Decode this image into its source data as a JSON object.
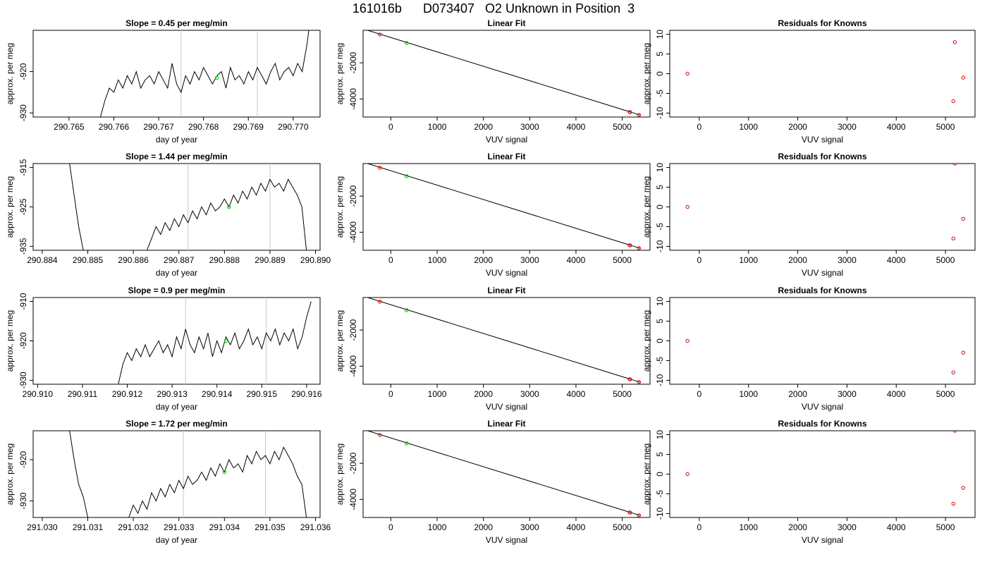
{
  "figure": {
    "title": "161016b      D073407   O2 Unknown in Position  3"
  },
  "chart_data": [
    {
      "type": "line",
      "panel": "timeseries",
      "row": 0,
      "title": "Slope =  0.45  per meg/min",
      "xlabel": "day of year",
      "ylabel": "approx. per meg",
      "xlim": [
        290.7642,
        290.7706
      ],
      "ylim": [
        -931,
        -910
      ],
      "xticks": [
        "290.765",
        "290.766",
        "290.767",
        "290.768",
        "290.769",
        "290.770"
      ],
      "yticks": [
        "-920",
        "-930"
      ],
      "vlines": [
        290.7675,
        290.7692
      ],
      "series": [
        {
          "x": [
            290.7657,
            290.7658,
            290.7659,
            290.766,
            290.7661,
            290.7662,
            290.7663,
            290.7664,
            290.7665,
            290.7666,
            290.7667,
            290.7668,
            290.7669,
            290.767,
            290.7671,
            290.7672,
            290.7673,
            290.7674,
            290.7675,
            290.7676,
            290.7677,
            290.7678,
            290.7679,
            290.768,
            290.7681,
            290.7682,
            290.7683,
            290.7684,
            290.7685,
            290.7686,
            290.7687,
            290.7688,
            290.7689,
            290.769,
            290.7691,
            290.7692,
            290.7693,
            290.7694,
            290.7695,
            290.7696,
            290.7697,
            290.7698,
            290.7699,
            290.77,
            290.7701,
            290.7702,
            290.7703,
            290.7704
          ],
          "y": [
            -931,
            -927,
            -924,
            -925,
            -922,
            -924,
            -921,
            -923,
            -920,
            -924,
            -922,
            -921,
            -923,
            -920,
            -922,
            -924,
            -918,
            -923,
            -925,
            -921,
            -923,
            -920,
            -922,
            -919,
            -921,
            -923,
            -921,
            -920,
            -924,
            -919,
            -922,
            -921,
            -923,
            -920,
            -922,
            -919,
            -921,
            -923,
            -920,
            -918,
            -922,
            -920,
            -919,
            -921,
            -918,
            -920,
            -914,
            -906
          ]
        }
      ],
      "marker": {
        "x": 290.7683,
        "y": -921.5
      }
    },
    {
      "type": "line",
      "panel": "timeseries",
      "row": 1,
      "title": "Slope =  1.44  per meg/min",
      "xlabel": "day of year",
      "ylabel": "approx. per meg",
      "xlim": [
        290.8838,
        290.8901
      ],
      "ylim": [
        -936,
        -914
      ],
      "xticks": [
        "290.884",
        "290.885",
        "290.886",
        "290.887",
        "290.888",
        "290.889",
        "290.890"
      ],
      "yticks": [
        "-915",
        "-925",
        "-935"
      ],
      "vlines": [
        290.8872,
        290.889
      ],
      "series": [
        {
          "x": [
            290.8846,
            290.8847,
            290.8848,
            290.8849,
            290.885,
            290.8851,
            290.8852,
            290.8853,
            290.8854,
            290.8855,
            290.8856,
            290.8857,
            290.8858,
            290.8859,
            290.886,
            290.8861,
            290.8862,
            290.8863,
            290.8864,
            290.8865,
            290.8866,
            290.8867,
            290.8868,
            290.8869,
            290.887,
            290.8871,
            290.8872,
            290.8873,
            290.8874,
            290.8875,
            290.8876,
            290.8877,
            290.8878,
            290.8879,
            290.888,
            290.8881,
            290.8882,
            290.8883,
            290.8884,
            290.8885,
            290.8886,
            290.8887,
            290.8888,
            290.8889,
            290.889,
            290.8891,
            290.8892,
            290.8893,
            290.8894,
            290.8895,
            290.8896,
            290.8897,
            290.8898,
            290.8899
          ],
          "y": [
            -914,
            -922,
            -930,
            -936,
            null,
            null,
            null,
            null,
            null,
            null,
            null,
            null,
            null,
            null,
            null,
            null,
            null,
            -936,
            -933,
            -930,
            -932,
            -929,
            -931,
            -928,
            -930,
            -927,
            -929,
            -926,
            -928,
            -925,
            -927,
            -924,
            -926,
            -925,
            -923,
            -925,
            -922,
            -924,
            -921,
            -923,
            -920,
            -922,
            -919,
            -921,
            -918,
            -920,
            -919,
            -921,
            -918,
            -920,
            -922,
            -925,
            -936,
            -936
          ]
        }
      ],
      "marker": {
        "x": 290.8881,
        "y": -925
      }
    },
    {
      "type": "line",
      "panel": "timeseries",
      "row": 2,
      "title": "Slope =  0.9  per meg/min",
      "xlabel": "day of year",
      "ylabel": "approx. per meg",
      "xlim": [
        290.9099,
        290.9163
      ],
      "ylim": [
        -931,
        -909
      ],
      "xticks": [
        "290.910",
        "290.911",
        "290.912",
        "290.913",
        "290.914",
        "290.915",
        "290.916"
      ],
      "yticks": [
        "-910",
        "-920",
        "-930"
      ],
      "vlines": [
        290.9133,
        290.9151
      ],
      "series": [
        {
          "x": [
            290.9118,
            290.9119,
            290.912,
            290.9121,
            290.9122,
            290.9123,
            290.9124,
            290.9125,
            290.9126,
            290.9127,
            290.9128,
            290.9129,
            290.913,
            290.9131,
            290.9132,
            290.9133,
            290.9134,
            290.9135,
            290.9136,
            290.9137,
            290.9138,
            290.9139,
            290.914,
            290.9141,
            290.9142,
            290.9143,
            290.9144,
            290.9145,
            290.9146,
            290.9147,
            290.9148,
            290.9149,
            290.915,
            290.9151,
            290.9152,
            290.9153,
            290.9154,
            290.9155,
            290.9156,
            290.9157,
            290.9158,
            290.9159,
            290.916,
            290.9161
          ],
          "y": [
            -931,
            -926,
            -923,
            -925,
            -922,
            -924,
            -921,
            -924,
            -922,
            -920,
            -923,
            -921,
            -924,
            -919,
            -922,
            -917,
            -921,
            -923,
            -919,
            -922,
            -918,
            -924,
            -920,
            -923,
            -919,
            -921,
            -918,
            -922,
            -920,
            -917,
            -921,
            -919,
            -922,
            -918,
            -920,
            -917,
            -921,
            -918,
            -920,
            -917,
            -922,
            -919,
            -914,
            -910
          ]
        }
      ],
      "marker": {
        "x": 290.9142,
        "y": -920
      }
    },
    {
      "type": "line",
      "panel": "timeseries",
      "row": 3,
      "title": "Slope =  1.72  per meg/min",
      "xlabel": "day of year",
      "ylabel": "approx. per meg",
      "xlim": [
        291.0298,
        291.0361
      ],
      "ylim": [
        -934,
        -913
      ],
      "xticks": [
        "291.030",
        "291.031",
        "291.032",
        "291.033",
        "291.034",
        "291.035",
        "291.036"
      ],
      "yticks": [
        "-920",
        "-930"
      ],
      "vlines": [
        291.0331,
        291.0349
      ],
      "series": [
        {
          "x": [
            291.0306,
            291.0307,
            291.0308,
            291.0309,
            291.031,
            291.0311,
            291.0312,
            291.0313,
            291.0314,
            291.0315,
            291.0316,
            291.0317,
            291.0318,
            291.0319,
            291.032,
            291.0321,
            291.0322,
            291.0323,
            291.0324,
            291.0325,
            291.0326,
            291.0327,
            291.0328,
            291.0329,
            291.033,
            291.0331,
            291.0332,
            291.0333,
            291.0334,
            291.0335,
            291.0336,
            291.0337,
            291.0338,
            291.0339,
            291.034,
            291.0341,
            291.0342,
            291.0343,
            291.0344,
            291.0345,
            291.0346,
            291.0347,
            291.0348,
            291.0349,
            291.035,
            291.0351,
            291.0352,
            291.0353,
            291.0354,
            291.0355,
            291.0356,
            291.0357,
            291.0358
          ],
          "y": [
            -913,
            -920,
            -926,
            -929,
            -934,
            null,
            null,
            null,
            null,
            null,
            null,
            null,
            null,
            -934,
            -931,
            -933,
            -930,
            -932,
            -928,
            -930,
            -927,
            -929,
            -926,
            -928,
            -925,
            -927,
            -924,
            -926,
            -925,
            -923,
            -925,
            -922,
            -924,
            -921,
            -923,
            -920,
            -922,
            -921,
            -923,
            -919,
            -921,
            -918,
            -920,
            -919,
            -921,
            -918,
            -920,
            -917,
            -919,
            -921,
            -924,
            -926,
            -934
          ]
        }
      ],
      "marker": {
        "x": 291.034,
        "y": -923
      }
    },
    {
      "type": "scatter",
      "panel": "fit",
      "row": 0,
      "title": "Linear Fit",
      "xlabel": "VUV signal",
      "ylabel": "approx. per meg",
      "xlim": [
        -600,
        5600
      ],
      "ylim": [
        -5000,
        -200
      ],
      "xticks": [
        0,
        1000,
        2000,
        3000,
        4000,
        5000
      ],
      "yticks": [
        -2000,
        -4000
      ],
      "fit_line": {
        "x": [
          -500,
          5400
        ],
        "y": [
          -200,
          -4900
        ]
      },
      "knowns": {
        "x": [
          -240,
          5160,
          5170,
          5360
        ],
        "y": [
          -430,
          -4720,
          -4730,
          -4880
        ]
      },
      "unknown": {
        "x": 340,
        "y": -900
      }
    },
    {
      "type": "scatter",
      "panel": "fit",
      "row": 1,
      "title": "Linear Fit",
      "xlabel": "VUV signal",
      "ylabel": "approx. per meg",
      "xlim": [
        -600,
        5600
      ],
      "ylim": [
        -5000,
        -200
      ],
      "xticks": [
        0,
        1000,
        2000,
        3000,
        4000,
        5000
      ],
      "yticks": [
        -2000,
        -4000
      ],
      "fit_line": {
        "x": [
          -500,
          5400
        ],
        "y": [
          -200,
          -4900
        ]
      },
      "knowns": {
        "x": [
          -240,
          5160,
          5170,
          5360
        ],
        "y": [
          -430,
          -4720,
          -4730,
          -4880
        ]
      },
      "unknown": {
        "x": 340,
        "y": -900
      }
    },
    {
      "type": "scatter",
      "panel": "fit",
      "row": 2,
      "title": "Linear Fit",
      "xlabel": "VUV signal",
      "ylabel": "approx. per meg",
      "xlim": [
        -600,
        5600
      ],
      "ylim": [
        -5000,
        -200
      ],
      "xticks": [
        0,
        1000,
        2000,
        3000,
        4000,
        5000
      ],
      "yticks": [
        -2000,
        -4000
      ],
      "fit_line": {
        "x": [
          -500,
          5400
        ],
        "y": [
          -200,
          -4900
        ]
      },
      "knowns": {
        "x": [
          -240,
          5160,
          5170,
          5360
        ],
        "y": [
          -430,
          -4720,
          -4730,
          -4880
        ]
      },
      "unknown": {
        "x": 340,
        "y": -900
      }
    },
    {
      "type": "scatter",
      "panel": "fit",
      "row": 3,
      "title": "Linear Fit",
      "xlabel": "VUV signal",
      "ylabel": "approx. per meg",
      "xlim": [
        -600,
        5600
      ],
      "ylim": [
        -5000,
        -200
      ],
      "xticks": [
        0,
        1000,
        2000,
        3000,
        4000,
        5000
      ],
      "yticks": [
        -2000,
        -4000
      ],
      "fit_line": {
        "x": [
          -500,
          5400
        ],
        "y": [
          -200,
          -4900
        ]
      },
      "knowns": {
        "x": [
          -240,
          5160,
          5170,
          5360
        ],
        "y": [
          -430,
          -4720,
          -4730,
          -4880
        ]
      },
      "unknown": {
        "x": 340,
        "y": -900
      }
    },
    {
      "type": "scatter",
      "panel": "residuals",
      "row": 0,
      "title": "Residuals for Knowns",
      "xlabel": "VUV signal",
      "ylabel": "approx. per meg",
      "xlim": [
        -600,
        5600
      ],
      "ylim": [
        -11,
        11
      ],
      "xticks": [
        0,
        1000,
        2000,
        3000,
        4000,
        5000
      ],
      "yticks": [
        10,
        5,
        0,
        -5,
        -10
      ],
      "points": {
        "x": [
          -240,
          5190,
          5160,
          5360
        ],
        "y": [
          0,
          8,
          -7,
          -1
        ]
      }
    },
    {
      "type": "scatter",
      "panel": "residuals",
      "row": 1,
      "title": "Residuals for Knowns",
      "xlabel": "VUV signal",
      "ylabel": "approx. per meg",
      "xlim": [
        -600,
        5600
      ],
      "ylim": [
        -11,
        11
      ],
      "xticks": [
        0,
        1000,
        2000,
        3000,
        4000,
        5000
      ],
      "yticks": [
        10,
        5,
        0,
        -5,
        -10
      ],
      "points": {
        "x": [
          -240,
          5190,
          5160,
          5360
        ],
        "y": [
          0,
          11,
          -8,
          -3
        ]
      }
    },
    {
      "type": "scatter",
      "panel": "residuals",
      "row": 2,
      "title": "Residuals for Knowns",
      "xlabel": "VUV signal",
      "ylabel": "approx. per meg",
      "xlim": [
        -600,
        5600
      ],
      "ylim": [
        -11,
        11
      ],
      "xticks": [
        0,
        1000,
        2000,
        3000,
        4000,
        5000
      ],
      "yticks": [
        10,
        5,
        0,
        -5,
        -10
      ],
      "points": {
        "x": [
          -240,
          5160,
          5360
        ],
        "y": [
          0,
          -8,
          -3
        ]
      }
    },
    {
      "type": "scatter",
      "panel": "residuals",
      "row": 3,
      "title": "Residuals for Knowns",
      "xlabel": "VUV signal",
      "ylabel": "approx. per meg",
      "xlim": [
        -600,
        5600
      ],
      "ylim": [
        -11,
        11
      ],
      "xticks": [
        0,
        1000,
        2000,
        3000,
        4000,
        5000
      ],
      "yticks": [
        10,
        5,
        0,
        -5,
        -10
      ],
      "points": {
        "x": [
          -240,
          5190,
          5160,
          5360
        ],
        "y": [
          0,
          11,
          -7.5,
          -3.5
        ]
      }
    }
  ]
}
